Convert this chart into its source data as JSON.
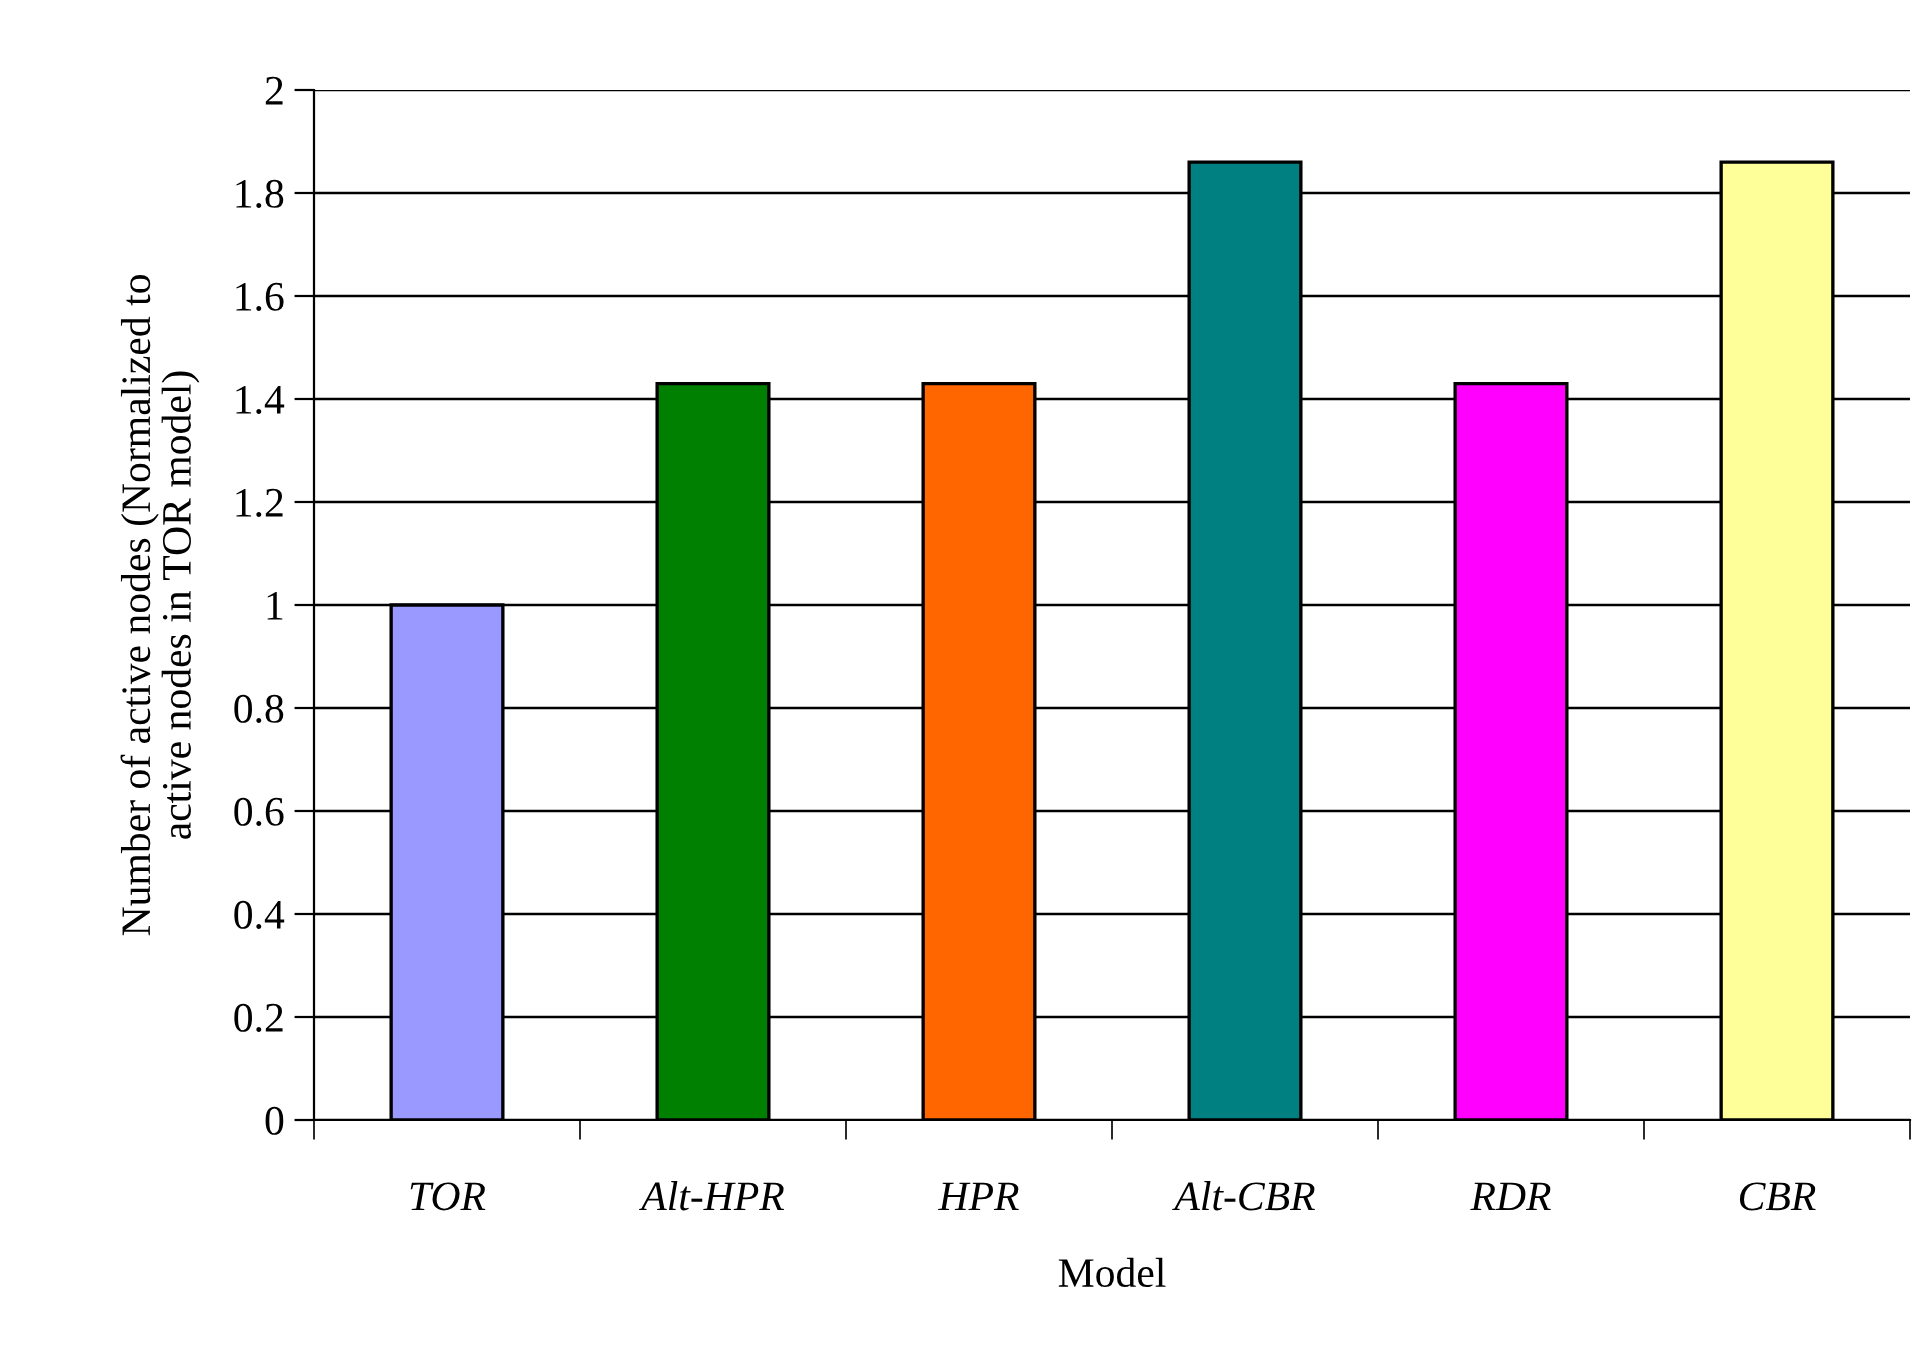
{
  "chart_data": {
    "type": "bar",
    "categories": [
      "TOR",
      "Alt-HPR",
      "HPR",
      "Alt-CBR",
      "RDR",
      "CBR"
    ],
    "values": [
      1,
      1.43,
      1.43,
      1.86,
      1.43,
      1.86
    ],
    "colors": [
      "#9999ff",
      "#008000",
      "#ff6600",
      "#008080",
      "#ff00ff",
      "#ffff99"
    ],
    "xlabel": "Model",
    "ylabel": "Number of active nodes (Normalized to\nactive nodes in TOR model)",
    "ylim": [
      0,
      2
    ],
    "yticks": [
      0,
      {
        "value": 0.2,
        "label": "0.2"
      },
      {
        "value": 0.4,
        "label": "0.4"
      },
      {
        "value": 0.6,
        "label": "0.6"
      },
      {
        "value": 0.8,
        "label": "0.8"
      },
      1,
      {
        "value": 1.2,
        "label": "1.2"
      },
      {
        "value": 1.4,
        "label": "1.4"
      },
      {
        "value": 1.6,
        "label": "1.6"
      },
      {
        "value": 1.8,
        "label": "1.8"
      },
      2
    ],
    "grid": "y",
    "legend": false
  }
}
